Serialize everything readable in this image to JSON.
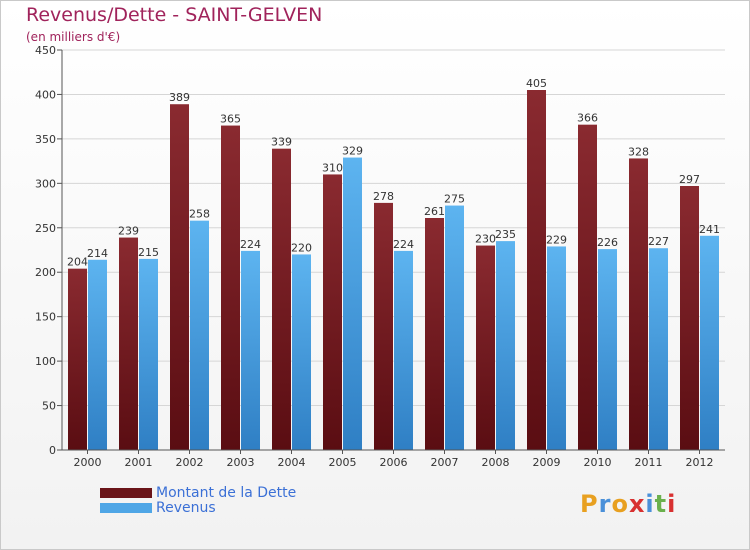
{
  "header": {
    "title": "Revenus/Dette - SAINT-GELVEN",
    "subtitle": "(en milliers d'€)"
  },
  "colors": {
    "debt": "#7a1c22",
    "revenue": "#4fa6e6",
    "title": "#a0235b",
    "legend_text": "#3b70d6"
  },
  "legend": {
    "items": [
      {
        "label": "Montant de la Dette",
        "color": "#7a1c22"
      },
      {
        "label": "Revenus",
        "color": "#4fa6e6"
      }
    ]
  },
  "logo": {
    "text": "Proxiti",
    "letters": [
      "P",
      "r",
      "o",
      "x",
      "i",
      "t",
      "i"
    ],
    "letter_colors": [
      "#e8a020",
      "#4a90d9",
      "#e8a020",
      "#d83030",
      "#4a90d9",
      "#6ab04c",
      "#d83030"
    ]
  },
  "chart_data": {
    "type": "bar",
    "title": "Revenus/Dette - SAINT-GELVEN",
    "subtitle": "(en milliers d'€)",
    "categories": [
      "2000",
      "2001",
      "2002",
      "2003",
      "2004",
      "2005",
      "2006",
      "2007",
      "2008",
      "2009",
      "2010",
      "2011",
      "2012"
    ],
    "series": [
      {
        "name": "Montant de la Dette",
        "color": "#7a1c22",
        "values": [
          204,
          239,
          389,
          365,
          339,
          310,
          278,
          261,
          230,
          405,
          366,
          328,
          297
        ]
      },
      {
        "name": "Revenus",
        "color": "#4fa6e6",
        "values": [
          214,
          215,
          258,
          224,
          220,
          329,
          224,
          275,
          235,
          229,
          226,
          227,
          241
        ]
      }
    ],
    "ylim": [
      0,
      450
    ],
    "yticks": [
      0,
      50,
      100,
      150,
      200,
      250,
      300,
      350,
      400,
      450
    ],
    "grid": true,
    "legend_position": "bottom-left"
  }
}
